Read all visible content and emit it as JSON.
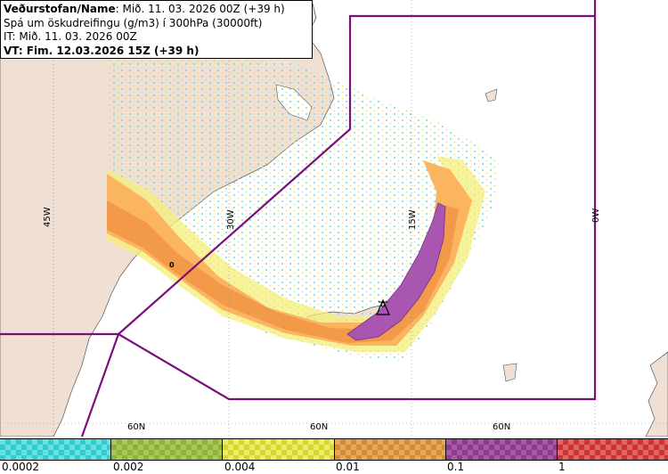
{
  "header": {
    "line1_bold": "Veðurstofan/Name",
    "line1_rest": ": Mið. 11. 03. 2026 00Z (+39 h)",
    "line2": "Spá um öskudreifingu (g/m3) í 300hPa (30000ft)",
    "line3": "IT: Mið. 11. 03. 2026 00Z",
    "line4": "VT: Fim. 12.03.2026 15Z (+39 h)"
  },
  "grid_labels": {
    "lon_45w": "45W",
    "lon_30w": "30W",
    "lon_15w": "15W",
    "lon_0w": "0W",
    "lat_60n_a": "60N",
    "lat_60n_b": "60N",
    "lat_60n_c": "60N"
  },
  "map_label_zero": "0",
  "legend": {
    "labels": [
      "0.0002",
      "0.002",
      "0.004",
      "0.01",
      "0.1",
      "1"
    ],
    "colors": [
      "#33cccc",
      "#8db33a",
      "#d6d633",
      "#d58a3a",
      "#8e3a8e",
      "#cc3333"
    ],
    "checker_colors": [
      "#66e0e0",
      "#a8c85a",
      "#ecec66",
      "#e8a85a",
      "#a85aa8",
      "#e06666"
    ]
  },
  "colors": {
    "land": "#f0e0d4",
    "sea": "#ffffff",
    "boundary": "#7a0f7a",
    "ash_light_cyan": "#80e0e0",
    "ash_yellow": "#f5ef7a",
    "ash_orange_light": "#fbb560",
    "ash_orange": "#f29a4a",
    "ash_purple": "#a856b0"
  }
}
